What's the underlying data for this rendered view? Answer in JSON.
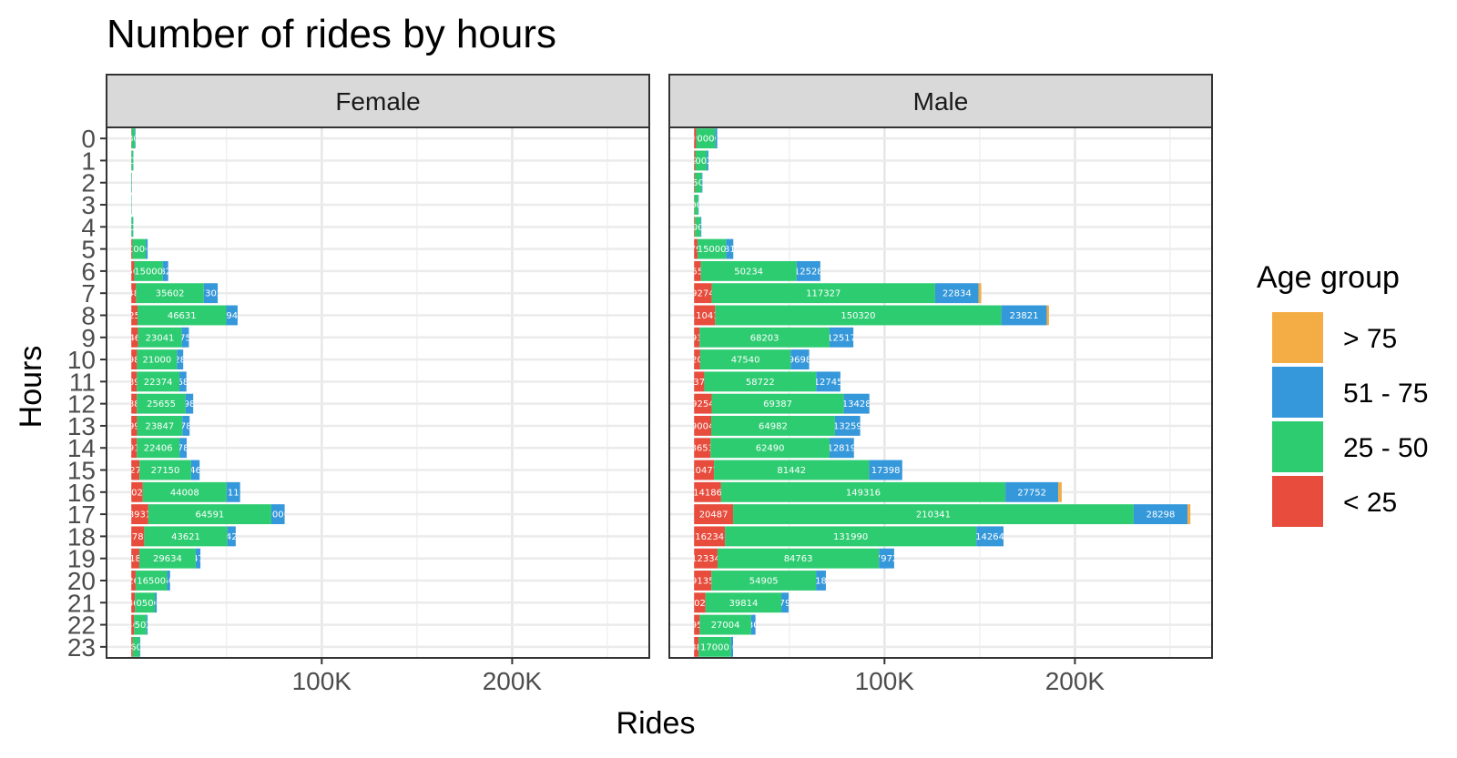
{
  "chart_data": {
    "type": "bar",
    "orientation": "horizontal",
    "stacked": true,
    "title": "Number of rides by hours",
    "xlabel": "Rides",
    "ylabel": "Hours",
    "x_ticks": [
      {
        "value": 100000,
        "label": "100K"
      },
      {
        "value": 200000,
        "label": "200K"
      }
    ],
    "xlim": [
      -13000,
      272000
    ],
    "grid": true,
    "categories": [
      "0",
      "1",
      "2",
      "3",
      "4",
      "5",
      "6",
      "7",
      "8",
      "9",
      "10",
      "11",
      "12",
      "13",
      "14",
      "15",
      "16",
      "17",
      "18",
      "19",
      "20",
      "21",
      "22",
      "23"
    ],
    "legend": {
      "title": "Age group",
      "placement": "right",
      "items": [
        {
          "label": "> 75",
          "color": "#F4AC45"
        },
        {
          "label": "51 - 75",
          "color": "#3598DB"
        },
        {
          "label": "25 - 50",
          "color": "#2ECC71"
        },
        {
          "label": "< 25",
          "color": "#E74C3C"
        }
      ]
    },
    "panels": [
      {
        "name": "Female",
        "series": [
          {
            "name": "< 25",
            "color": "#E74C3C",
            "values": [
              150,
              80,
              30,
              15,
              40,
              600,
              1561,
              2487,
              3250,
              3467,
              2980,
              2896,
              2883,
              2990,
              2910,
              4273,
              6025,
              8931,
              6787,
              4187,
              2268,
              1862,
              1463,
              740
            ]
          },
          {
            "name": "25 - 50",
            "color": "#2ECC71",
            "values": [
              1800,
              900,
              300,
              200,
              900,
              7000,
              15000,
              35602,
              46631,
              23041,
              21000,
              22374,
              25655,
              23847,
              22406,
              27150,
              44008,
              64591,
              43621,
              29634,
              16500,
              10500,
              6500,
              3600
            ]
          },
          {
            "name": "51 - 75",
            "color": "#3598DB",
            "values": [
              300,
              150,
              50,
              30,
              150,
              1000,
              2820,
              7302,
              5940,
              3750,
              3280,
              3680,
              3980,
              3780,
              3780,
              4460,
              7117,
              7000,
              4420,
              2470,
              1600,
              1000,
              600,
              400
            ]
          },
          {
            "name": "> 75",
            "color": "#F4AC45",
            "values": [
              0,
              0,
              0,
              0,
              0,
              0,
              0,
              0,
              0,
              0,
              0,
              0,
              0,
              0,
              0,
              0,
              0,
              0,
              0,
              0,
              0,
              0,
              0,
              0
            ]
          }
        ]
      },
      {
        "name": "Male",
        "series": [
          {
            "name": "< 25",
            "color": "#E74C3C",
            "values": [
              1092,
              626,
              389,
              150,
              428,
              1794,
              3556,
              9274,
              11041,
              2931,
              3207,
              5373,
              9254,
              9004,
              8653,
              10477,
              14186,
              20487,
              16234,
              12334,
              9135,
              6023,
              2957,
              2383
            ]
          },
          {
            "name": "25 - 50",
            "color": "#2ECC71",
            "values": [
              10000,
              6000,
              3500,
              2000,
              3000,
              15000,
              50234,
              117327,
              150320,
              68203,
              47540,
              58722,
              69387,
              64982,
              62490,
              81442,
              149316,
              210341,
              131990,
              84763,
              54905,
              39814,
              27004,
              17000
            ]
          },
          {
            "name": "51 - 75",
            "color": "#3598DB",
            "values": [
              1075,
              900,
              500,
              300,
              400,
              3810,
              12528,
              22834,
              23821,
              12517,
              9698,
              12745,
              13428,
              13259,
              12819,
              17398,
              27752,
              28298,
              14264,
              7972,
              5180,
              3790,
              2300,
              1100
            ]
          },
          {
            "name": "> 75",
            "color": "#F4AC45",
            "values": [
              0,
              0,
              0,
              0,
              0,
              0,
              0,
              1400,
              1200,
              0,
              0,
              0,
              0,
              0,
              0,
              0,
              1800,
              1500,
              0,
              0,
              0,
              0,
              0,
              0
            ]
          }
        ]
      }
    ]
  }
}
